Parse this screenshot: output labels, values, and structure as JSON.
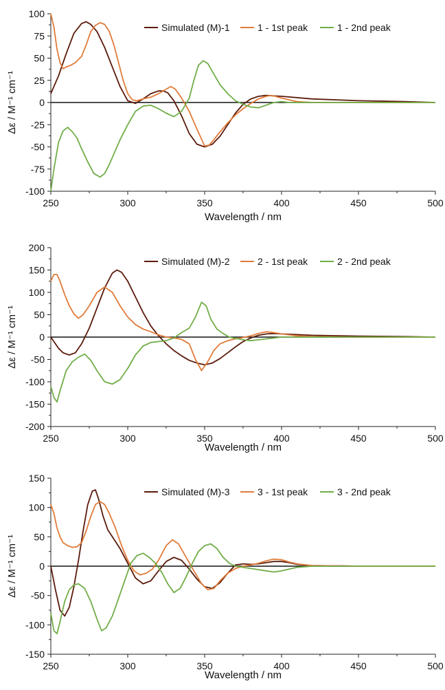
{
  "chart_data": [
    {
      "type": "line",
      "xlabel": "Wavelength / nm",
      "ylabel": "Δε / M⁻¹ cm⁻¹",
      "xlim": [
        250,
        500
      ],
      "ylim": [
        -100,
        100
      ],
      "xticks": [
        "250",
        "300",
        "350",
        "400",
        "450",
        "500"
      ],
      "yticks": [
        "100",
        "75",
        "50",
        "25",
        "0",
        "-25",
        "-50",
        "-75",
        "-100"
      ],
      "grid": false,
      "legend_position": "top-right",
      "series": [
        {
          "name": "Simulated (M)-1",
          "color": "#5a1a0a",
          "x": [
            250,
            255,
            260,
            265,
            270,
            273,
            276,
            280,
            285,
            290,
            295,
            300,
            305,
            310,
            315,
            320,
            323,
            326,
            330,
            335,
            340,
            345,
            350,
            355,
            360,
            365,
            370,
            375,
            380,
            385,
            390,
            400,
            420,
            450,
            480,
            500
          ],
          "y": [
            10,
            30,
            55,
            78,
            89,
            91,
            88,
            80,
            62,
            40,
            18,
            2,
            -1,
            4,
            10,
            13,
            13,
            11,
            2,
            -15,
            -35,
            -47,
            -50,
            -47,
            -38,
            -25,
            -12,
            -2,
            4,
            7,
            8,
            7,
            4,
            2,
            1,
            0
          ]
        },
        {
          "name": "1 - 1st peak",
          "color": "#e07b39",
          "x": [
            250,
            252,
            254,
            256,
            258,
            260,
            263,
            266,
            270,
            273,
            276,
            279,
            282,
            285,
            288,
            291,
            294,
            297,
            300,
            303,
            306,
            310,
            315,
            320,
            325,
            328,
            331,
            335,
            340,
            345,
            350,
            353,
            356,
            360,
            365,
            370,
            375,
            380,
            385,
            390,
            393,
            396,
            400,
            405,
            410,
            420,
            450,
            480,
            500
          ],
          "y": [
            100,
            85,
            60,
            45,
            38,
            40,
            42,
            45,
            52,
            65,
            80,
            87,
            90,
            88,
            80,
            65,
            45,
            25,
            10,
            3,
            2,
            4,
            6,
            10,
            15,
            18,
            15,
            5,
            -10,
            -30,
            -49,
            -48,
            -42,
            -33,
            -23,
            -14,
            -7,
            -1,
            4,
            7,
            8,
            7,
            5,
            3,
            1,
            0,
            0,
            0,
            0
          ]
        },
        {
          "name": "1 - 2nd peak",
          "color": "#70ad47",
          "x": [
            250,
            252,
            255,
            258,
            261,
            264,
            267,
            270,
            274,
            278,
            282,
            285,
            288,
            291,
            295,
            300,
            305,
            310,
            315,
            320,
            325,
            330,
            335,
            340,
            343,
            346,
            349,
            352,
            355,
            360,
            365,
            370,
            375,
            380,
            385,
            390,
            395,
            400,
            405,
            410,
            420,
            450,
            480,
            500
          ],
          "y": [
            -100,
            -75,
            -45,
            -32,
            -28,
            -33,
            -40,
            -52,
            -67,
            -80,
            -84,
            -80,
            -70,
            -58,
            -42,
            -25,
            -10,
            -4,
            -3,
            -7,
            -12,
            -16,
            -10,
            5,
            25,
            42,
            47,
            44,
            35,
            20,
            10,
            2,
            -2,
            -5,
            -6,
            -3,
            0,
            1,
            0,
            0,
            0,
            0,
            0,
            0
          ]
        }
      ]
    },
    {
      "type": "line",
      "xlabel": "Wavelength / nm",
      "ylabel": "Δε / M⁻¹ cm⁻¹",
      "xlim": [
        250,
        500
      ],
      "ylim": [
        -200,
        200
      ],
      "xticks": [
        "250",
        "300",
        "350",
        "400",
        "450",
        "500"
      ],
      "yticks": [
        "200",
        "150",
        "100",
        "50",
        "0",
        "-50",
        "-100",
        "-150",
        "-200"
      ],
      "grid": false,
      "legend_position": "top-right",
      "series": [
        {
          "name": "Simulated (M)-2",
          "color": "#5a1a0a",
          "x": [
            250,
            255,
            258,
            262,
            266,
            270,
            275,
            280,
            285,
            290,
            293,
            296,
            300,
            305,
            310,
            315,
            320,
            325,
            330,
            335,
            340,
            345,
            350,
            355,
            360,
            365,
            370,
            375,
            380,
            385,
            390,
            395,
            400,
            420,
            450,
            480,
            500
          ],
          "y": [
            0,
            -25,
            -35,
            -40,
            -35,
            -15,
            20,
            65,
            110,
            143,
            150,
            145,
            125,
            90,
            55,
            25,
            3,
            -15,
            -30,
            -42,
            -52,
            -58,
            -62,
            -58,
            -48,
            -35,
            -22,
            -10,
            -2,
            4,
            7,
            8,
            7,
            4,
            2,
            1,
            0
          ]
        },
        {
          "name": "2 - 1st peak",
          "color": "#e07b39",
          "x": [
            250,
            252,
            254,
            256,
            259,
            262,
            265,
            268,
            271,
            275,
            280,
            285,
            290,
            295,
            300,
            305,
            310,
            315,
            320,
            325,
            330,
            335,
            340,
            344,
            348,
            352,
            356,
            360,
            365,
            370,
            375,
            380,
            385,
            390,
            395,
            400,
            410,
            420,
            450,
            480,
            500
          ],
          "y": [
            125,
            140,
            140,
            125,
            95,
            70,
            52,
            42,
            50,
            70,
            100,
            112,
            100,
            70,
            45,
            28,
            18,
            12,
            5,
            0,
            -2,
            -5,
            -15,
            -50,
            -75,
            -55,
            -30,
            -15,
            -8,
            -4,
            -1,
            3,
            8,
            12,
            10,
            7,
            3,
            1,
            0,
            0,
            0
          ]
        },
        {
          "name": "2 - 2nd peak",
          "color": "#70ad47",
          "x": [
            250,
            252,
            254,
            256,
            260,
            264,
            268,
            272,
            276,
            280,
            285,
            290,
            295,
            300,
            305,
            310,
            315,
            320,
            325,
            330,
            335,
            340,
            344,
            348,
            351,
            354,
            358,
            362,
            366,
            370,
            375,
            380,
            385,
            390,
            395,
            400,
            410,
            420,
            450,
            480,
            500
          ],
          "y": [
            -110,
            -135,
            -145,
            -120,
            -75,
            -55,
            -45,
            -38,
            -52,
            -75,
            -100,
            -105,
            -95,
            -70,
            -40,
            -20,
            -12,
            -10,
            -8,
            -2,
            10,
            20,
            45,
            78,
            70,
            40,
            18,
            8,
            0,
            -3,
            -6,
            -8,
            -6,
            -4,
            -2,
            0,
            0,
            0,
            0,
            0,
            0
          ]
        }
      ]
    },
    {
      "type": "line",
      "xlabel": "Wavelength / nm",
      "ylabel": "Δε / M⁻¹ cm⁻¹",
      "xlim": [
        250,
        500
      ],
      "ylim": [
        -150,
        150
      ],
      "xticks": [
        "250",
        "300",
        "350",
        "400",
        "450",
        "500"
      ],
      "yticks": [
        "150",
        "100",
        "50",
        "0",
        "-50",
        "-100",
        "-150"
      ],
      "grid": false,
      "legend_position": "top-right",
      "series": [
        {
          "name": "Simulated (M)-3",
          "color": "#5a1a0a",
          "x": [
            250,
            253,
            256,
            259,
            262,
            265,
            268,
            271,
            274,
            277,
            279,
            281,
            284,
            287,
            290,
            295,
            300,
            305,
            310,
            315,
            320,
            325,
            330,
            335,
            340,
            345,
            350,
            355,
            360,
            365,
            370,
            375,
            380,
            385,
            390,
            395,
            400,
            405,
            410,
            420,
            450,
            480,
            500
          ],
          "y": [
            0,
            -40,
            -75,
            -85,
            -70,
            -35,
            10,
            60,
            105,
            128,
            130,
            115,
            85,
            62,
            50,
            30,
            5,
            -20,
            -30,
            -25,
            -8,
            8,
            15,
            10,
            -5,
            -22,
            -35,
            -38,
            -28,
            -12,
            2,
            4,
            3,
            4,
            6,
            8,
            8,
            6,
            3,
            1,
            0,
            0,
            0
          ]
        },
        {
          "name": "3 - 1st peak",
          "color": "#e07b39",
          "x": [
            250,
            252,
            254,
            256,
            258,
            261,
            264,
            267,
            270,
            273,
            276,
            279,
            282,
            285,
            288,
            292,
            296,
            300,
            304,
            308,
            312,
            316,
            320,
            325,
            329,
            333,
            338,
            343,
            348,
            352,
            356,
            360,
            365,
            370,
            375,
            380,
            385,
            390,
            395,
            400,
            405,
            410,
            420,
            450,
            480,
            500
          ],
          "y": [
            105,
            90,
            65,
            50,
            40,
            35,
            32,
            33,
            40,
            60,
            85,
            105,
            110,
            105,
            90,
            65,
            35,
            10,
            -8,
            -15,
            -12,
            -5,
            10,
            35,
            45,
            38,
            15,
            -8,
            -30,
            -40,
            -38,
            -25,
            -12,
            -4,
            0,
            2,
            5,
            9,
            12,
            11,
            7,
            4,
            1,
            0,
            0,
            0
          ]
        },
        {
          "name": "3 - 2nd peak",
          "color": "#70ad47",
          "x": [
            250,
            252,
            254,
            256,
            259,
            262,
            265,
            268,
            272,
            276,
            280,
            283,
            286,
            290,
            294,
            298,
            302,
            306,
            310,
            314,
            318,
            322,
            326,
            330,
            334,
            338,
            342,
            346,
            350,
            354,
            358,
            362,
            366,
            370,
            375,
            380,
            385,
            390,
            395,
            400,
            405,
            410,
            420,
            450,
            480,
            500
          ],
          "y": [
            -80,
            -110,
            -115,
            -95,
            -60,
            -40,
            -32,
            -30,
            -38,
            -60,
            -90,
            -110,
            -105,
            -85,
            -55,
            -25,
            5,
            18,
            22,
            15,
            5,
            -10,
            -30,
            -45,
            -38,
            -18,
            5,
            25,
            35,
            38,
            30,
            15,
            5,
            0,
            -2,
            -4,
            -6,
            -8,
            -10,
            -8,
            -5,
            -2,
            0,
            0,
            0,
            0
          ]
        }
      ]
    }
  ]
}
